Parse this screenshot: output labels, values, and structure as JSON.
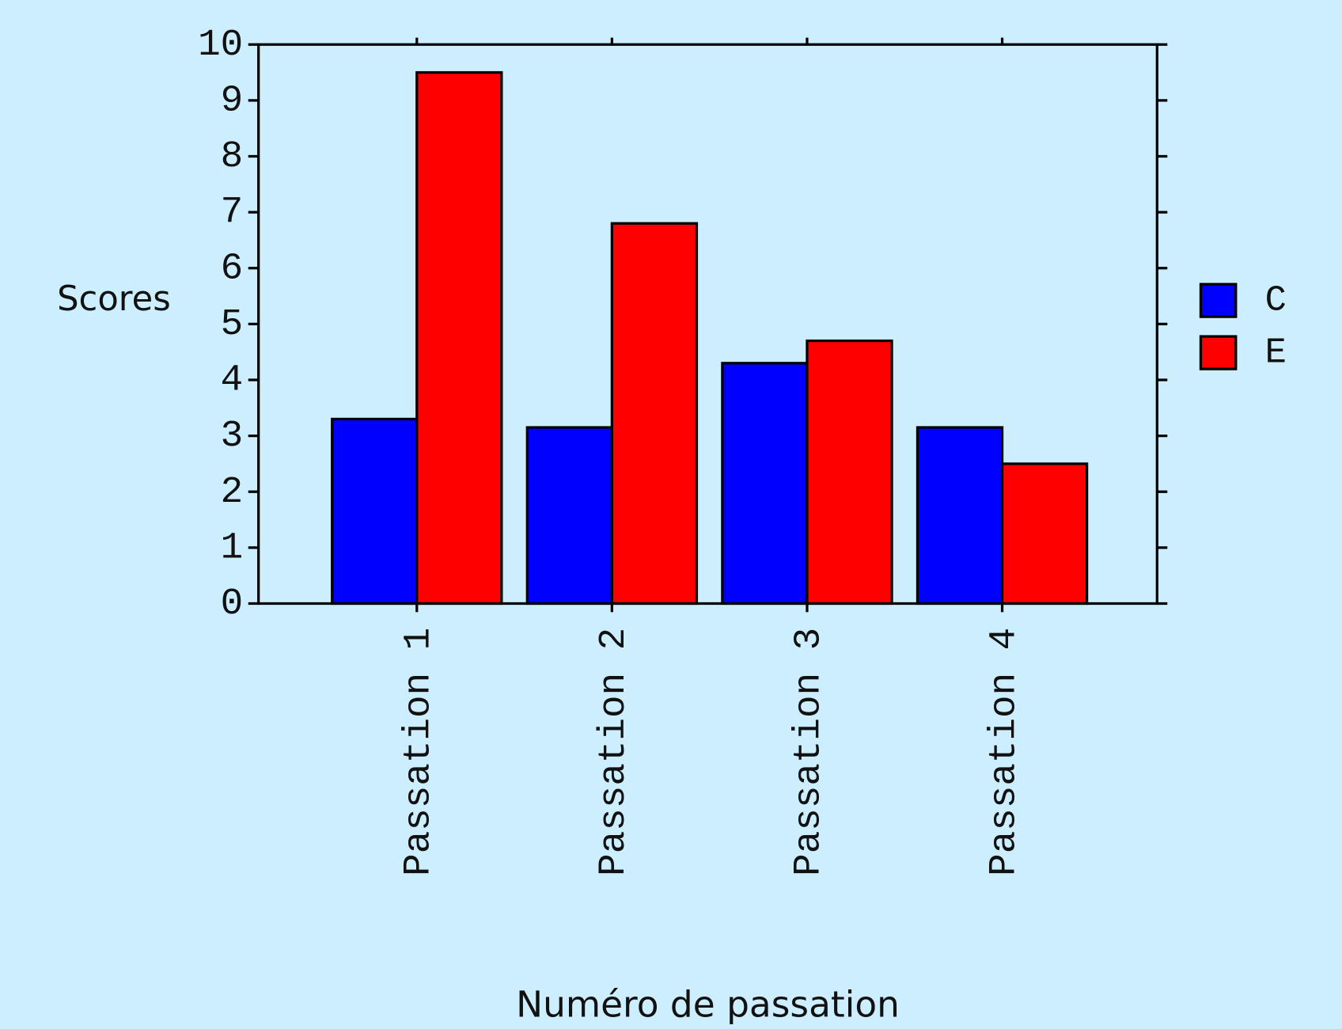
{
  "chart_data": {
    "type": "bar",
    "y_label": "Scores",
    "x_label": "Numéro de passation",
    "categories": [
      "Passation 1",
      "Passation 2",
      "Passation 3",
      "Passation 4"
    ],
    "series": [
      {
        "name": "C",
        "color": "#0000ff",
        "values": [
          3.3,
          3.15,
          4.3,
          3.15
        ]
      },
      {
        "name": "E",
        "color": "#ff0000",
        "values": [
          9.5,
          6.8,
          4.7,
          2.5
        ]
      }
    ],
    "ylim": [
      0,
      10
    ],
    "yticks": [
      0,
      1,
      2,
      3,
      4,
      5,
      6,
      7,
      8,
      9,
      10
    ]
  }
}
